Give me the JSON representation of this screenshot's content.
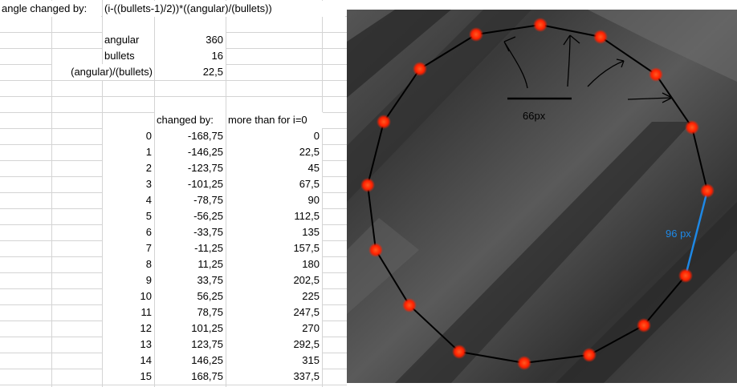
{
  "spreadsheet": {
    "formula_label": "angle changed by:",
    "formula": "(i-((bullets-1)/2))*((angular)/(bullets))",
    "params": [
      {
        "label": "angular",
        "value": "360"
      },
      {
        "label": "bullets",
        "value": "16"
      },
      {
        "label": "(angular)/(bullets)",
        "value": "22,5"
      }
    ],
    "table": {
      "headers": [
        "changed by:",
        "more than for i=0"
      ],
      "rows": [
        {
          "i": "0",
          "changed": "-168,75",
          "more": "0"
        },
        {
          "i": "1",
          "changed": "-146,25",
          "more": "22,5"
        },
        {
          "i": "2",
          "changed": "-123,75",
          "more": "45"
        },
        {
          "i": "3",
          "changed": "-101,25",
          "more": "67,5"
        },
        {
          "i": "4",
          "changed": "-78,75",
          "more": "90"
        },
        {
          "i": "5",
          "changed": "-56,25",
          "more": "112,5"
        },
        {
          "i": "6",
          "changed": "-33,75",
          "more": "135"
        },
        {
          "i": "7",
          "changed": "-11,25",
          "more": "157,5"
        },
        {
          "i": "8",
          "changed": "11,25",
          "more": "180"
        },
        {
          "i": "9",
          "changed": "33,75",
          "more": "202,5"
        },
        {
          "i": "10",
          "changed": "56,25",
          "more": "225"
        },
        {
          "i": "11",
          "changed": "78,75",
          "more": "247,5"
        },
        {
          "i": "12",
          "changed": "101,25",
          "more": "270"
        },
        {
          "i": "13",
          "changed": "123,75",
          "more": "292,5"
        },
        {
          "i": "14",
          "changed": "146,25",
          "more": "315"
        },
        {
          "i": "15",
          "changed": "168,75",
          "more": "337,5"
        }
      ]
    }
  },
  "game_view": {
    "bullet_count": 16,
    "distance_label": "66px",
    "chord_label": "96 px",
    "colors": {
      "background_dark": "#2f2f2f",
      "background_light": "#6a6a6a",
      "bullet": "#ff2a00",
      "ring_line": "#000000",
      "chord_line": "#1e88e5"
    }
  }
}
